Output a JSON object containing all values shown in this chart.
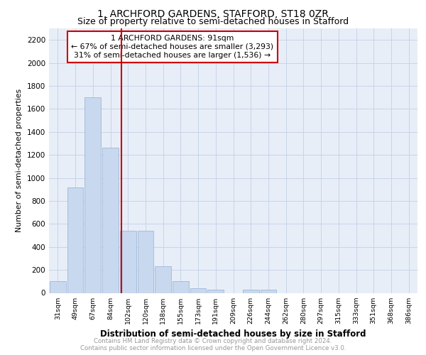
{
  "title": "1, ARCHFORD GARDENS, STAFFORD, ST18 0ZR",
  "subtitle": "Size of property relative to semi-detached houses in Stafford",
  "xlabel": "Distribution of semi-detached houses by size in Stafford",
  "ylabel": "Number of semi-detached properties",
  "footer_line1": "Contains HM Land Registry data © Crown copyright and database right 2024.",
  "footer_line2": "Contains public sector information licensed under the Open Government Licence v3.0.",
  "categories": [
    "31sqm",
    "49sqm",
    "67sqm",
    "84sqm",
    "102sqm",
    "120sqm",
    "138sqm",
    "155sqm",
    "173sqm",
    "191sqm",
    "209sqm",
    "226sqm",
    "244sqm",
    "262sqm",
    "280sqm",
    "297sqm",
    "315sqm",
    "333sqm",
    "351sqm",
    "368sqm",
    "386sqm"
  ],
  "values": [
    100,
    920,
    1700,
    1260,
    540,
    540,
    230,
    100,
    40,
    25,
    0,
    25,
    25,
    0,
    0,
    0,
    0,
    0,
    0,
    0,
    0
  ],
  "bar_color": "#c8d8ee",
  "bar_edge_color": "#a0b8d8",
  "ylim": [
    0,
    2300
  ],
  "yticks": [
    0,
    200,
    400,
    600,
    800,
    1000,
    1200,
    1400,
    1600,
    1800,
    2000,
    2200
  ],
  "red_line_x": 3.62,
  "red_line_label": "1 ARCHFORD GARDENS: 91sqm",
  "annotation_smaller": "← 67% of semi-detached houses are smaller (3,293)",
  "annotation_larger": "31% of semi-detached houses are larger (1,536) →",
  "annotation_box_facecolor": "#ffffff",
  "annotation_box_edgecolor": "#cc0000",
  "red_line_color": "#cc0000",
  "grid_color": "#c8d4e8",
  "background_color": "#e8eef8",
  "title_fontsize": 10,
  "subtitle_fontsize": 9
}
